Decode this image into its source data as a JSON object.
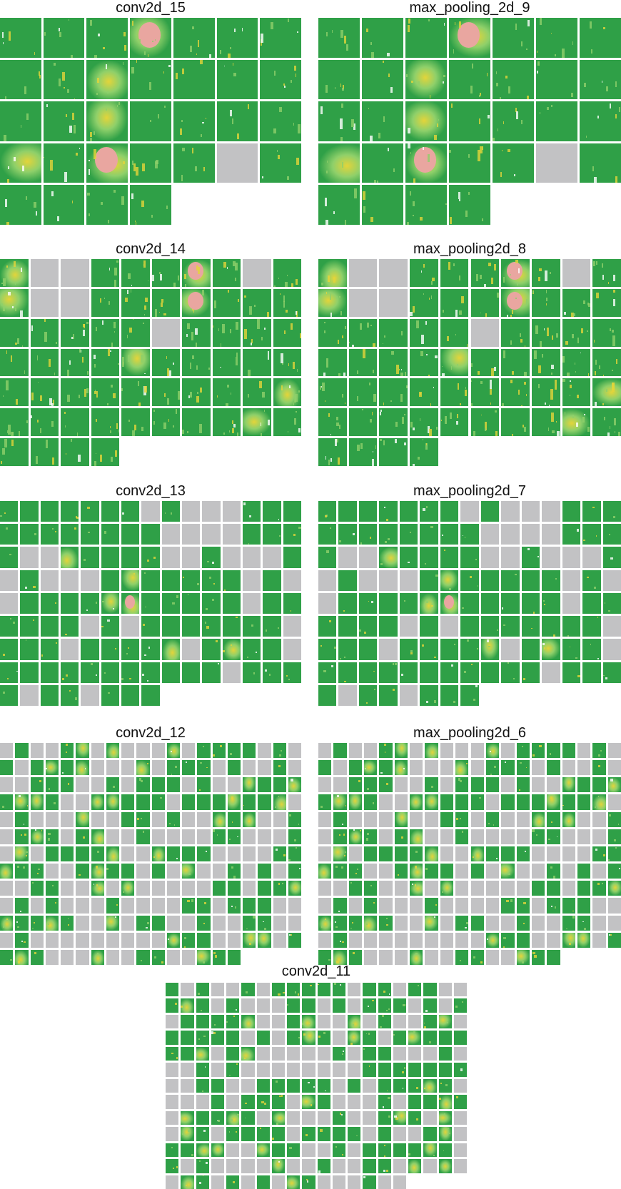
{
  "colors": {
    "active": "#2fa047",
    "empty": "#c2c2c4",
    "edge": "#8fd06a",
    "highlight": "#e3d43a",
    "hot": "#e9a6a0",
    "background": "#ffffff"
  },
  "panels": [
    {
      "id": "conv2d_15",
      "title": "conv2d_15",
      "columns": 7,
      "count": 32,
      "empty": [
        26
      ],
      "highlights": [
        3,
        9,
        16,
        21,
        23
      ],
      "hot": [
        3,
        23
      ]
    },
    {
      "id": "max_pooling_2d_9",
      "title": "max_pooling_2d_9",
      "columns": 7,
      "count": 32,
      "empty": [
        26
      ],
      "highlights": [
        3,
        9,
        16,
        21,
        23
      ],
      "hot": [
        3,
        23
      ]
    },
    {
      "id": "conv2d_14",
      "title": "conv2d_14",
      "columns": 10,
      "count": 64,
      "empty": [
        1,
        2,
        8,
        11,
        12,
        25
      ],
      "highlights": [
        0,
        6,
        10,
        16,
        34,
        49,
        58
      ],
      "hot": [
        6,
        16
      ]
    },
    {
      "id": "max_pooling2d_8",
      "title": "max_pooling2d_8",
      "columns": 10,
      "count": 64,
      "empty": [
        1,
        2,
        8,
        11,
        12,
        25
      ],
      "highlights": [
        0,
        6,
        10,
        16,
        34,
        49,
        58
      ],
      "hot": [
        6,
        16
      ]
    },
    {
      "id": "conv2d_13",
      "title": "conv2d_13",
      "columns": 15,
      "count": 128,
      "empty": [
        7,
        9,
        10,
        11,
        23,
        24,
        25,
        26,
        31,
        32,
        38,
        39,
        41,
        42,
        43,
        45,
        47,
        48,
        49,
        57,
        59,
        60,
        72,
        79,
        81,
        89,
        93,
        99,
        104,
        116,
        121,
        124,
        128,
        129,
        130,
        131,
        132,
        133,
        135,
        137,
        138
      ],
      "highlights": [
        33,
        51,
        65,
        66,
        98,
        101
      ],
      "hot": [
        66
      ]
    },
    {
      "id": "max_pooling2d_7",
      "title": "max_pooling2d_7",
      "columns": 15,
      "count": 128,
      "empty": [
        7,
        9,
        10,
        11,
        23,
        24,
        25,
        26,
        31,
        32,
        38,
        39,
        41,
        42,
        43,
        45,
        47,
        48,
        49,
        57,
        59,
        60,
        72,
        79,
        81,
        89,
        93,
        99,
        104,
        116,
        121,
        124,
        128,
        129,
        130,
        131,
        132,
        133,
        135,
        137,
        138
      ],
      "highlights": [
        33,
        51,
        65,
        66,
        98,
        101
      ],
      "hot": [
        66
      ]
    },
    {
      "id": "conv2d_12",
      "title": "conv2d_12",
      "columns": 20,
      "count": 256,
      "empty_ratio": 0.42,
      "seed": 12
    },
    {
      "id": "max_pooling2d_6",
      "title": "max_pooling2d_6",
      "columns": 20,
      "count": 256,
      "empty_ratio": 0.42,
      "seed": 12
    },
    {
      "id": "conv2d_11",
      "title": "conv2d_11",
      "columns": 20,
      "count": 256,
      "empty_ratio": 0.45,
      "seed": 11
    }
  ]
}
